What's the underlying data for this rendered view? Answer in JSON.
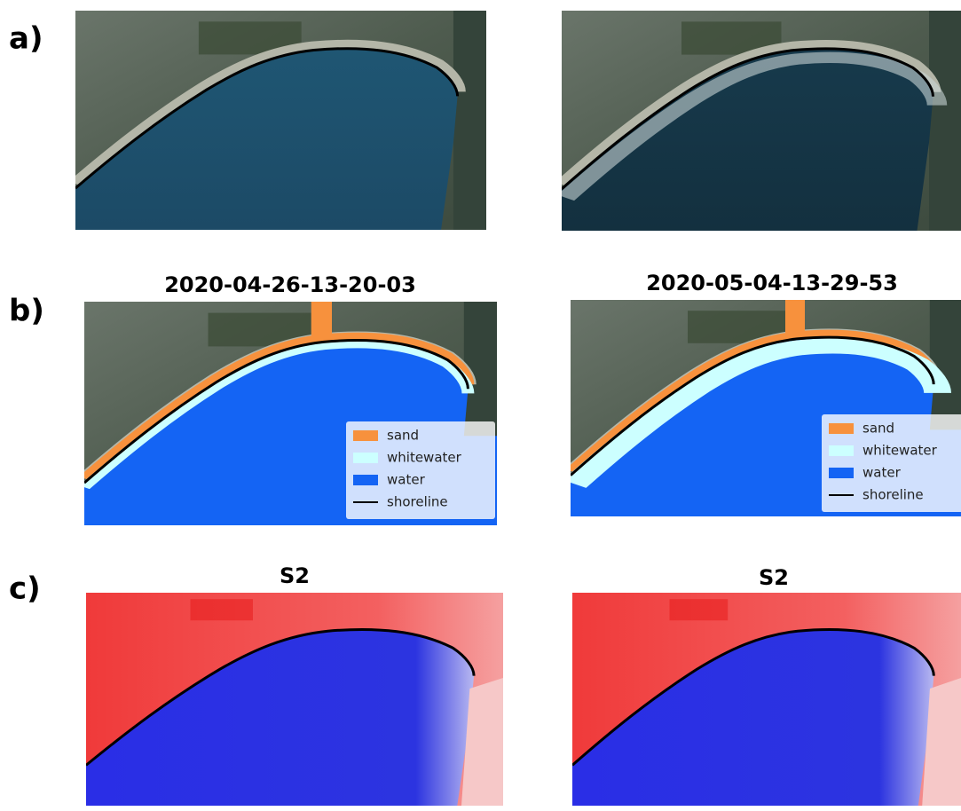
{
  "panels": {
    "a": {
      "label": "a)"
    },
    "b": {
      "label": "b)",
      "titles": [
        "2020-04-26-13-20-03",
        "2020-05-04-13-29-53"
      ],
      "legend": [
        {
          "label": "sand",
          "color": "#f7913d"
        },
        {
          "label": "whitewater",
          "color": "#ccffff"
        },
        {
          "label": "water",
          "color": "#1464f4"
        },
        {
          "label": "shoreline",
          "color": "#000000"
        }
      ]
    },
    "c": {
      "label": "c)",
      "titles": [
        "S2",
        "S2"
      ]
    }
  }
}
